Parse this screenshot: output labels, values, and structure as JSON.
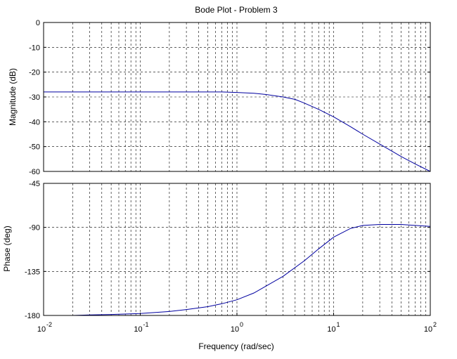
{
  "chart_data": {
    "type": "line",
    "title": "Bode Plot - Problem 3",
    "xlabel": "Frequency  (rad/sec)",
    "x_scale": "log",
    "xlim": [
      0.01,
      100
    ],
    "x_ticks": [
      {
        "value": 0.01,
        "base": "10",
        "exp": "-2"
      },
      {
        "value": 0.1,
        "base": "10",
        "exp": "-1"
      },
      {
        "value": 1,
        "base": "10",
        "exp": "0"
      },
      {
        "value": 10,
        "base": "10",
        "exp": "1"
      },
      {
        "value": 100,
        "base": "10",
        "exp": "2"
      }
    ],
    "grid": true,
    "line_color": "#0000a0",
    "panels": [
      {
        "ylabel": "Magnitude (dB)",
        "ylim": [
          -60,
          0
        ],
        "y_ticks": [
          0,
          -10,
          -20,
          -30,
          -40,
          -50,
          -60
        ],
        "series": [
          {
            "x": [
              0.01,
              0.03,
              0.1,
              0.3,
              0.7,
              1.0,
              1.5,
              2.0,
              3.0,
              4.0,
              5.0,
              7.0,
              10,
              15,
              20,
              30,
              50,
              70,
              100
            ],
            "y": [
              -28,
              -28,
              -28,
              -28,
              -28,
              -28.2,
              -28.5,
              -29,
              -30,
              -31,
              -32.5,
              -35,
              -38,
              -42,
              -45,
              -49,
              -54,
              -57,
              -60
            ]
          }
        ]
      },
      {
        "ylabel": "Phase (deg)",
        "ylim": [
          -180,
          -45
        ],
        "y_ticks": [
          -45,
          -90,
          -135,
          -180
        ],
        "series": [
          {
            "x": [
              0.01,
              0.02,
              0.03,
              0.05,
              0.1,
              0.2,
              0.3,
              0.5,
              0.7,
              1.0,
              1.5,
              2.0,
              3.0,
              5.0,
              7.0,
              10,
              15,
              20,
              30,
              50,
              70,
              100
            ],
            "y": [
              -180,
              -180,
              -179.5,
              -179,
              -178,
              -176,
              -174,
              -171,
              -168,
              -164,
              -157,
              -150,
              -140,
              -124,
              -112,
              -100,
              -91,
              -88,
              -87,
              -87,
              -88,
              -89
            ]
          }
        ]
      }
    ]
  }
}
